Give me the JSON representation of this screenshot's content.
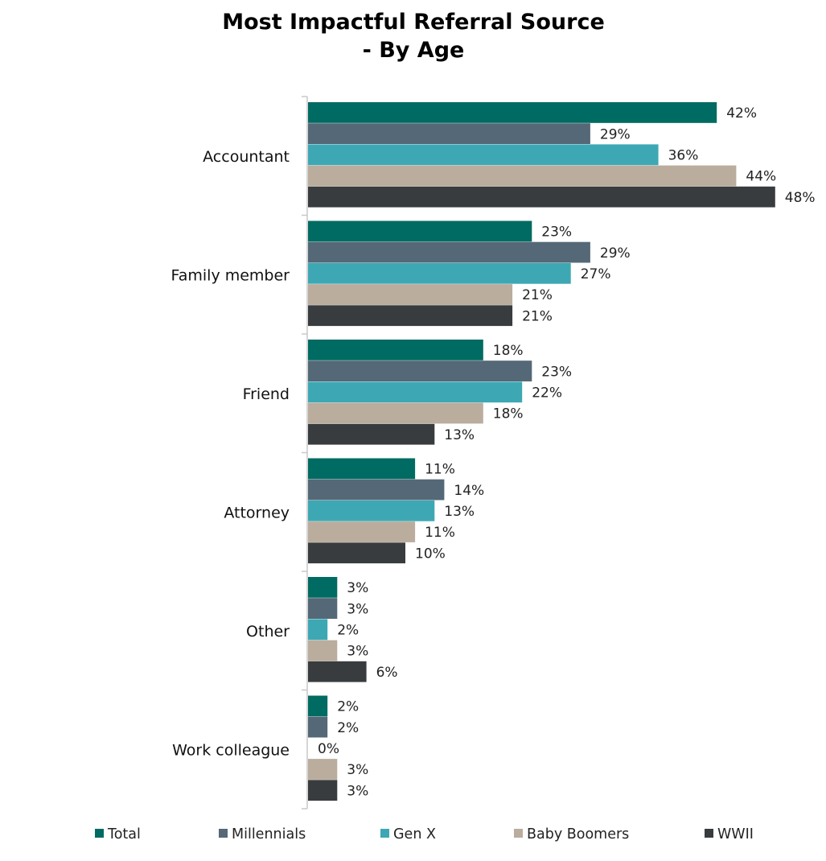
{
  "chart_data": {
    "type": "bar",
    "orientation": "horizontal",
    "title_lines": [
      "Most Impactful Referral Source",
      "- By Age"
    ],
    "categories": [
      "Accountant",
      "Family member",
      "Friend",
      "Attorney",
      "Other",
      "Work colleague"
    ],
    "series": [
      {
        "name": "Total",
        "color": "#006B62",
        "values": [
          42,
          23,
          18,
          11,
          3,
          2
        ]
      },
      {
        "name": "Millennials",
        "color": "#556877",
        "values": [
          29,
          29,
          23,
          14,
          3,
          2
        ]
      },
      {
        "name": "Gen X",
        "color": "#3DA8B3",
        "values": [
          36,
          27,
          22,
          13,
          2,
          0
        ]
      },
      {
        "name": "Baby Boomers",
        "color": "#BAAD9D",
        "values": [
          44,
          21,
          18,
          11,
          3,
          3
        ]
      },
      {
        "name": "WWII",
        "color": "#393C3E",
        "values": [
          48,
          21,
          13,
          10,
          6,
          3
        ]
      }
    ],
    "value_suffix": "%",
    "xlim": [
      0,
      48
    ],
    "legend_position": "bottom",
    "grid": false
  }
}
